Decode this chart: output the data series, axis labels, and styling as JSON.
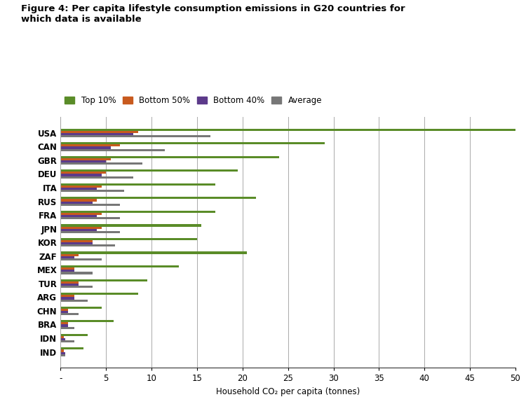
{
  "title": "Figure 4: Per capita lifestyle consumption emissions in G20 countries for\nwhich data is available",
  "xlabel": "Household CO₂ per capita (tonnes)",
  "countries": [
    "USA",
    "CAN",
    "GBR",
    "DEU",
    "ITA",
    "RUS",
    "FRA",
    "JPN",
    "KOR",
    "ZAF",
    "MEX",
    "TUR",
    "ARG",
    "CHN",
    "BRA",
    "IDN",
    "IND"
  ],
  "top10": [
    50.0,
    29.0,
    24.0,
    19.5,
    17.0,
    21.5,
    17.0,
    15.5,
    15.0,
    20.5,
    13.0,
    9.5,
    8.5,
    4.5,
    5.8,
    3.0,
    2.5
  ],
  "bottom50": [
    8.5,
    6.5,
    5.5,
    5.0,
    4.5,
    4.0,
    4.5,
    4.5,
    3.5,
    2.0,
    1.5,
    2.0,
    1.5,
    0.8,
    0.8,
    0.4,
    0.4
  ],
  "bottom40": [
    8.0,
    5.5,
    5.0,
    4.5,
    4.0,
    3.5,
    4.0,
    4.0,
    3.5,
    1.5,
    1.5,
    2.0,
    1.5,
    0.8,
    0.8,
    0.5,
    0.5
  ],
  "average": [
    16.5,
    11.5,
    9.0,
    8.0,
    7.0,
    6.5,
    6.5,
    6.5,
    6.0,
    4.5,
    3.5,
    3.5,
    3.0,
    2.0,
    1.5,
    1.5,
    0.5
  ],
  "color_top10": "#5a8c28",
  "color_bottom50": "#c85a1e",
  "color_bottom40": "#5c3a8a",
  "color_average": "#777777",
  "xlim": [
    0,
    50
  ],
  "xticks": [
    0,
    5,
    10,
    15,
    20,
    25,
    30,
    35,
    40,
    45,
    50
  ],
  "xtick_labels": [
    "-",
    "5",
    "10",
    "15",
    "20",
    "25",
    "30",
    "35",
    "40",
    "45",
    "50"
  ],
  "background_color": "#ffffff",
  "bar_height": 0.16,
  "legend_labels": [
    "Top 10%",
    "Bottom 50%",
    "Bottom 40%",
    "Average"
  ],
  "figsize": [
    7.5,
    5.77
  ],
  "dpi": 100
}
